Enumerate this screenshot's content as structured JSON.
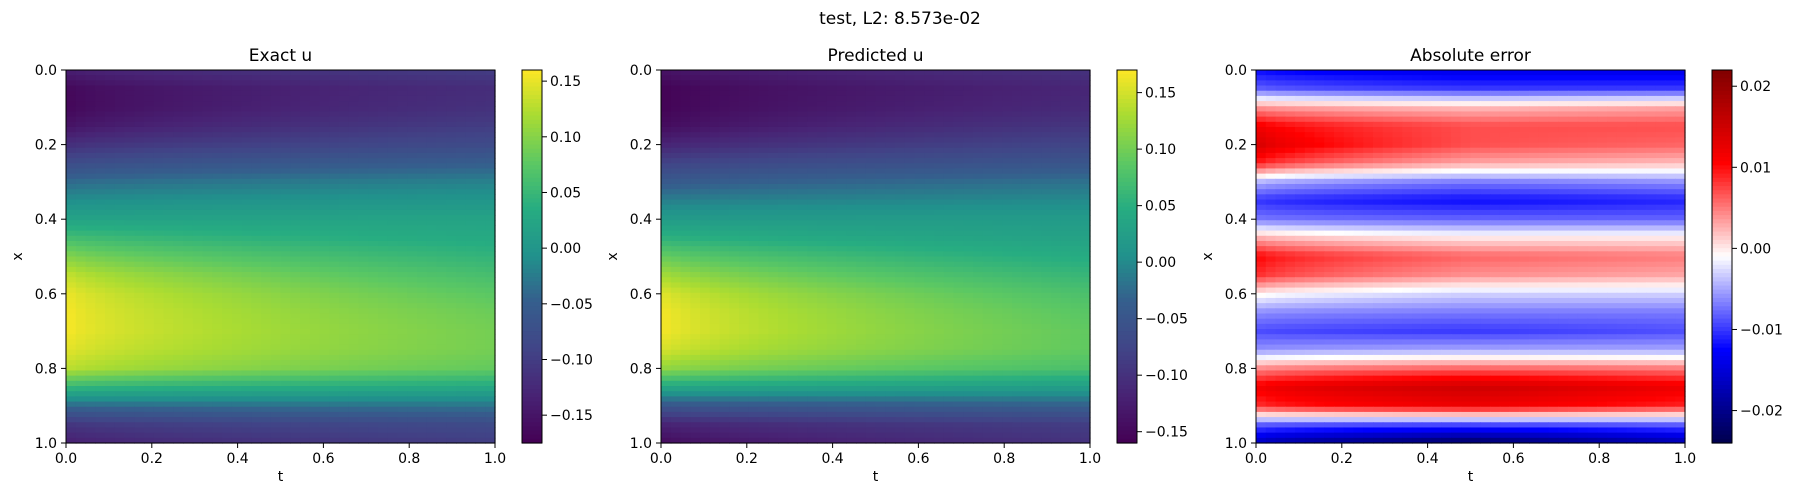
{
  "figure": {
    "suptitle": "test, L2: 8.573e-02"
  },
  "chart_data": [
    {
      "type": "heatmap",
      "title": "Exact u",
      "xlabel": "t",
      "ylabel": "x",
      "xlim": [
        0.0,
        1.0
      ],
      "ylim": [
        1.0,
        0.0
      ],
      "x_ticks": [
        "0.0",
        "0.2",
        "0.4",
        "0.6",
        "0.8",
        "1.0"
      ],
      "y_ticks": [
        "0.0",
        "0.2",
        "0.4",
        "0.6",
        "0.8",
        "1.0"
      ],
      "colormap": "viridis",
      "color_range": [
        -0.175,
        0.16
      ],
      "colorbar_ticks": [
        "0.15",
        "0.10",
        "0.05",
        "0.00",
        "−0.05",
        "−0.10",
        "−0.15"
      ],
      "colorbar_tick_values": [
        0.15,
        0.1,
        0.05,
        0.0,
        -0.05,
        -0.1,
        -0.15
      ],
      "profile_x": [
        0.0,
        0.05,
        0.1,
        0.15,
        0.2,
        0.25,
        0.3,
        0.35,
        0.4,
        0.45,
        0.5,
        0.55,
        0.6,
        0.65,
        0.7,
        0.75,
        0.8,
        0.85,
        0.9,
        0.95,
        1.0
      ],
      "u_t0": [
        -0.14,
        -0.168,
        -0.17,
        -0.155,
        -0.12,
        -0.08,
        -0.04,
        -0.01,
        0.02,
        0.06,
        0.1,
        0.135,
        0.155,
        0.16,
        0.16,
        0.15,
        0.13,
        0.05,
        -0.04,
        -0.11,
        -0.14
      ],
      "u_t1": [
        -0.1,
        -0.12,
        -0.115,
        -0.1,
        -0.08,
        -0.05,
        -0.02,
        0.0,
        0.02,
        0.03,
        0.045,
        0.06,
        0.075,
        0.085,
        0.09,
        0.09,
        0.08,
        0.03,
        -0.03,
        -0.08,
        -0.1
      ]
    },
    {
      "type": "heatmap",
      "title": "Predicted u",
      "xlabel": "t",
      "ylabel": "x",
      "xlim": [
        0.0,
        1.0
      ],
      "ylim": [
        1.0,
        0.0
      ],
      "x_ticks": [
        "0.0",
        "0.2",
        "0.4",
        "0.6",
        "0.8",
        "1.0"
      ],
      "y_ticks": [
        "0.0",
        "0.2",
        "0.4",
        "0.6",
        "0.8",
        "1.0"
      ],
      "colormap": "viridis",
      "color_range": [
        -0.16,
        0.17
      ],
      "colorbar_ticks": [
        "0.15",
        "0.10",
        "0.05",
        "0.00",
        "−0.05",
        "−0.10",
        "−0.15"
      ],
      "colorbar_tick_values": [
        0.15,
        0.1,
        0.05,
        0.0,
        -0.05,
        -0.1,
        -0.15
      ],
      "profile_x": [
        0.0,
        0.05,
        0.1,
        0.15,
        0.2,
        0.25,
        0.3,
        0.35,
        0.4,
        0.45,
        0.5,
        0.55,
        0.6,
        0.65,
        0.7,
        0.75,
        0.8,
        0.85,
        0.9,
        0.95,
        1.0
      ],
      "u_t0": [
        -0.14,
        -0.16,
        -0.16,
        -0.15,
        -0.12,
        -0.08,
        -0.045,
        -0.01,
        0.02,
        0.055,
        0.095,
        0.13,
        0.16,
        0.17,
        0.17,
        0.155,
        0.12,
        0.04,
        -0.05,
        -0.12,
        -0.15
      ],
      "u_t1": [
        -0.1,
        -0.115,
        -0.11,
        -0.095,
        -0.075,
        -0.05,
        -0.02,
        0.0,
        0.02,
        0.03,
        0.045,
        0.06,
        0.075,
        0.085,
        0.09,
        0.09,
        0.075,
        0.025,
        -0.035,
        -0.085,
        -0.1
      ]
    },
    {
      "type": "heatmap",
      "title": "Absolute error",
      "xlabel": "t",
      "ylabel": "x",
      "xlim": [
        0.0,
        1.0
      ],
      "ylim": [
        1.0,
        0.0
      ],
      "x_ticks": [
        "0.0",
        "0.2",
        "0.4",
        "0.6",
        "0.8",
        "1.0"
      ],
      "y_ticks": [
        "0.0",
        "0.2",
        "0.4",
        "0.6",
        "0.8",
        "1.0"
      ],
      "colormap": "seismic",
      "color_range": [
        -0.024,
        0.022
      ],
      "colorbar_ticks": [
        "0.02",
        "0.01",
        "0.00",
        "−0.01",
        "−0.02"
      ],
      "colorbar_tick_values": [
        0.02,
        0.01,
        0.0,
        -0.01,
        -0.02
      ],
      "profile_x": [
        0.0,
        0.05,
        0.1,
        0.15,
        0.2,
        0.25,
        0.3,
        0.35,
        0.4,
        0.45,
        0.5,
        0.55,
        0.6,
        0.65,
        0.7,
        0.75,
        0.8,
        0.85,
        0.9,
        0.95,
        1.0
      ],
      "e_t0": [
        -0.012,
        -0.008,
        0.004,
        0.012,
        0.015,
        0.01,
        -0.004,
        -0.01,
        -0.007,
        0.003,
        0.011,
        0.009,
        0.0,
        -0.006,
        -0.009,
        -0.006,
        0.004,
        0.011,
        0.008,
        -0.008,
        -0.016
      ],
      "e_t05": [
        -0.014,
        -0.01,
        0.002,
        0.007,
        0.007,
        0.003,
        -0.007,
        -0.012,
        -0.008,
        0.0,
        0.006,
        0.004,
        -0.003,
        -0.007,
        -0.01,
        -0.005,
        0.006,
        0.015,
        0.012,
        -0.009,
        -0.023
      ],
      "e_t1": [
        -0.014,
        -0.01,
        0.003,
        0.007,
        0.006,
        0.002,
        -0.006,
        -0.011,
        -0.008,
        0.0,
        0.005,
        0.003,
        -0.003,
        -0.007,
        -0.009,
        -0.005,
        0.005,
        0.012,
        0.009,
        -0.008,
        -0.018
      ]
    }
  ]
}
